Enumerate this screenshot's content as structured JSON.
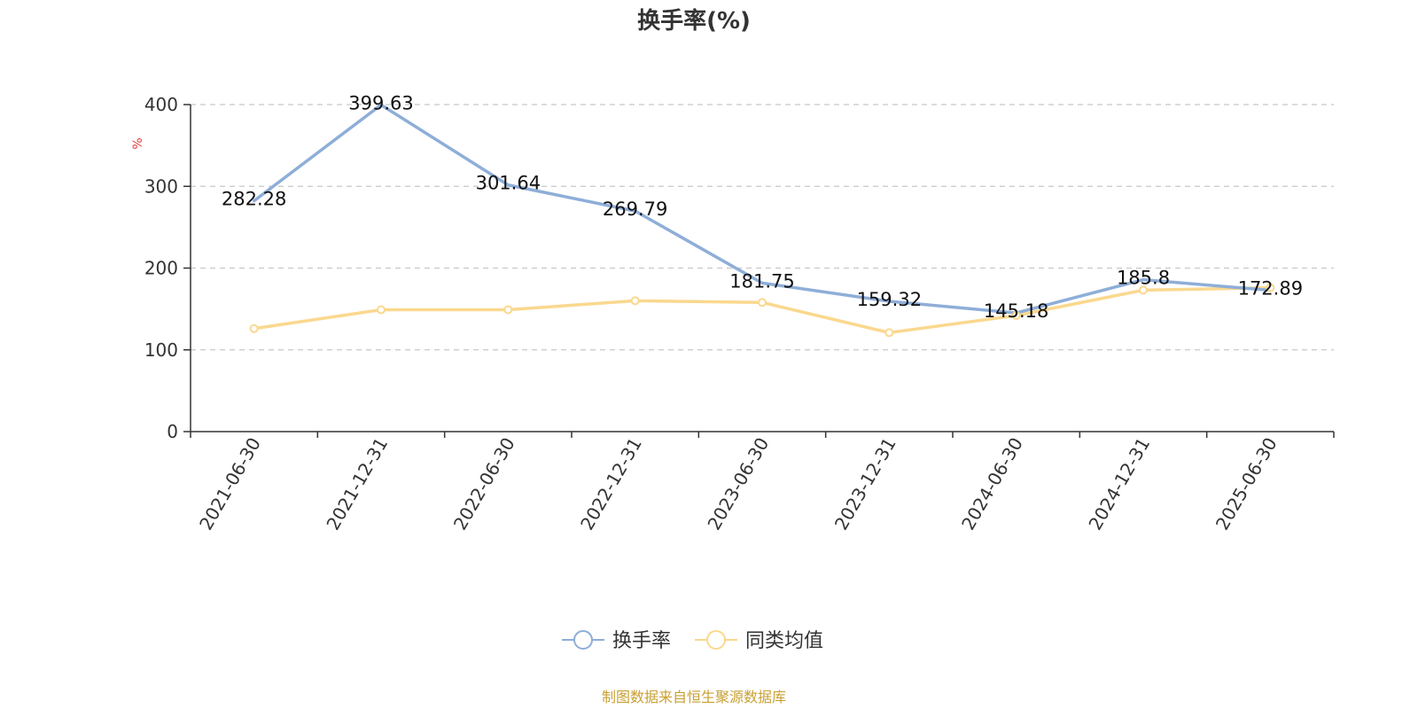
{
  "colors": {
    "turnover": "#8eaed8",
    "peer_avg": "#fad88e",
    "unit": "#e83b3b",
    "source": "#c9a034",
    "grid": "#c8c8c8",
    "axis": "#333333"
  },
  "chart_data": {
    "type": "line",
    "title": "换手率(%)",
    "ylabel": "%",
    "ylim": [
      0,
      400
    ],
    "yticks": [
      0,
      100,
      200,
      300,
      400
    ],
    "grid": "horizontal-dashed",
    "categories": [
      "2021-06-30",
      "2021-12-31",
      "2022-06-30",
      "2022-12-31",
      "2023-06-30",
      "2023-12-31",
      "2024-06-30",
      "2024-12-31",
      "2025-06-30"
    ],
    "series": [
      {
        "name": "换手率",
        "values": [
          282.28,
          399.63,
          301.64,
          269.79,
          181.75,
          159.32,
          145.18,
          185.8,
          172.89
        ],
        "labels": [
          "282.28",
          "399.63",
          "301.64",
          "269.79",
          "181.75",
          "159.32",
          "145.18",
          "185.8",
          "172.89"
        ]
      },
      {
        "name": "同类均值",
        "values": [
          126,
          149,
          149,
          160,
          158,
          121,
          142,
          173,
          176
        ]
      }
    ],
    "legend": "bottom-center"
  },
  "footer": {
    "source": "制图数据来自恒生聚源数据库"
  }
}
